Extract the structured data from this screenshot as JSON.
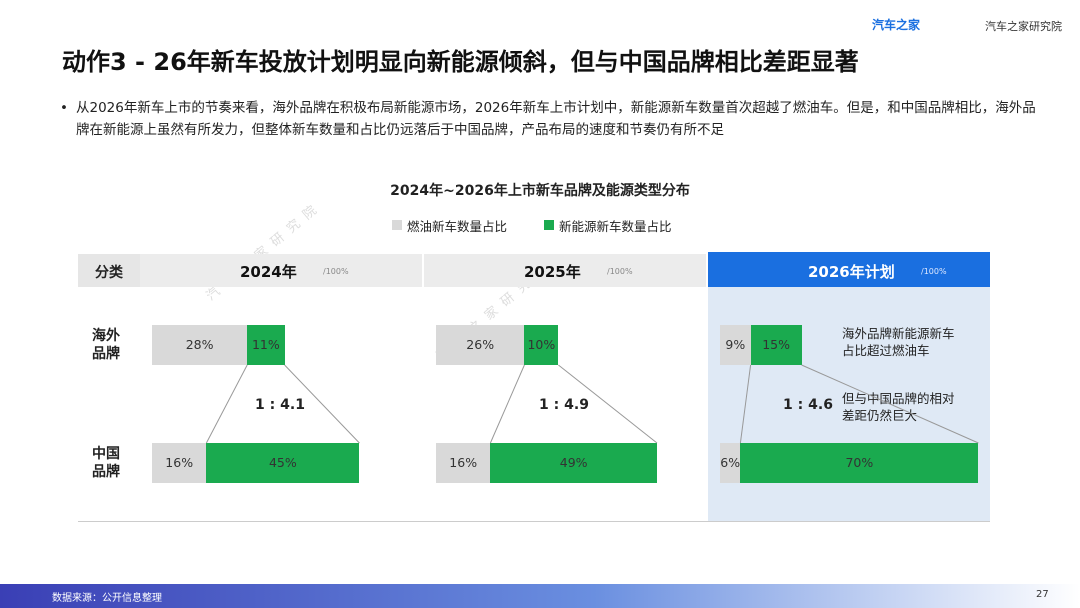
{
  "header": {
    "title": "动作3 - 26年新车投放计划明显向新能源倾斜，但与中国品牌相比差距显著",
    "logo1": "汽车之家",
    "logo2": "汽车之家研究院"
  },
  "bullet": "从2026年新车上市的节奏来看，海外品牌在积极布局新能源市场，2026年新车上市计划中，新能源新车数量首次超越了燃油车。但是，和中国品牌相比，海外品牌在新能源上虽然有所发力，但整体新车数量和占比仍远落后于中国品牌，产品布局的速度和节奏仍有所不足",
  "watermark": "汽车之家研究院",
  "chart_data": {
    "type": "stacked-bar-h",
    "title": "2024年~2026年上市新车品牌及能源类型分布",
    "row_header": "分类",
    "categories": [
      "海外品牌",
      "中国品牌"
    ],
    "series": [
      {
        "name": "燃油新车数量占比",
        "color": "#d9d9d9"
      },
      {
        "name": "新能源新车数量占比",
        "color": "#1aaa4f"
      }
    ],
    "panels": [
      {
        "name": "2024年",
        "unit": "/100%",
        "highlight": false,
        "ratio": "1 : 4.1",
        "series": [
          {
            "values": [
              28,
              16
            ],
            "value_labels": [
              "28%",
              "16%"
            ]
          },
          {
            "values": [
              11,
              45
            ],
            "value_labels": [
              "11%",
              "45%"
            ]
          }
        ]
      },
      {
        "name": "2025年",
        "unit": "/100%",
        "highlight": false,
        "ratio": "1 : 4.9",
        "series": [
          {
            "values": [
              26,
              16
            ],
            "value_labels": [
              "26%",
              "16%"
            ]
          },
          {
            "values": [
              10,
              49
            ],
            "value_labels": [
              "10%",
              "49%"
            ]
          }
        ]
      },
      {
        "name": "2026年计划",
        "unit": "/100%",
        "highlight": true,
        "ratio": "1 : 4.6",
        "annotations": [
          "海外品牌新能源新车占比超过燃油车",
          "但与中国品牌的相对差距仍然巨大"
        ],
        "series": [
          {
            "values": [
              9,
              6
            ],
            "value_labels": [
              "9%",
              "6%"
            ]
          },
          {
            "values": [
              15,
              70
            ],
            "value_labels": [
              "15%",
              "70%"
            ]
          }
        ]
      }
    ]
  },
  "footer": {
    "source": "数据来源：公开信息整理",
    "page": "27"
  }
}
